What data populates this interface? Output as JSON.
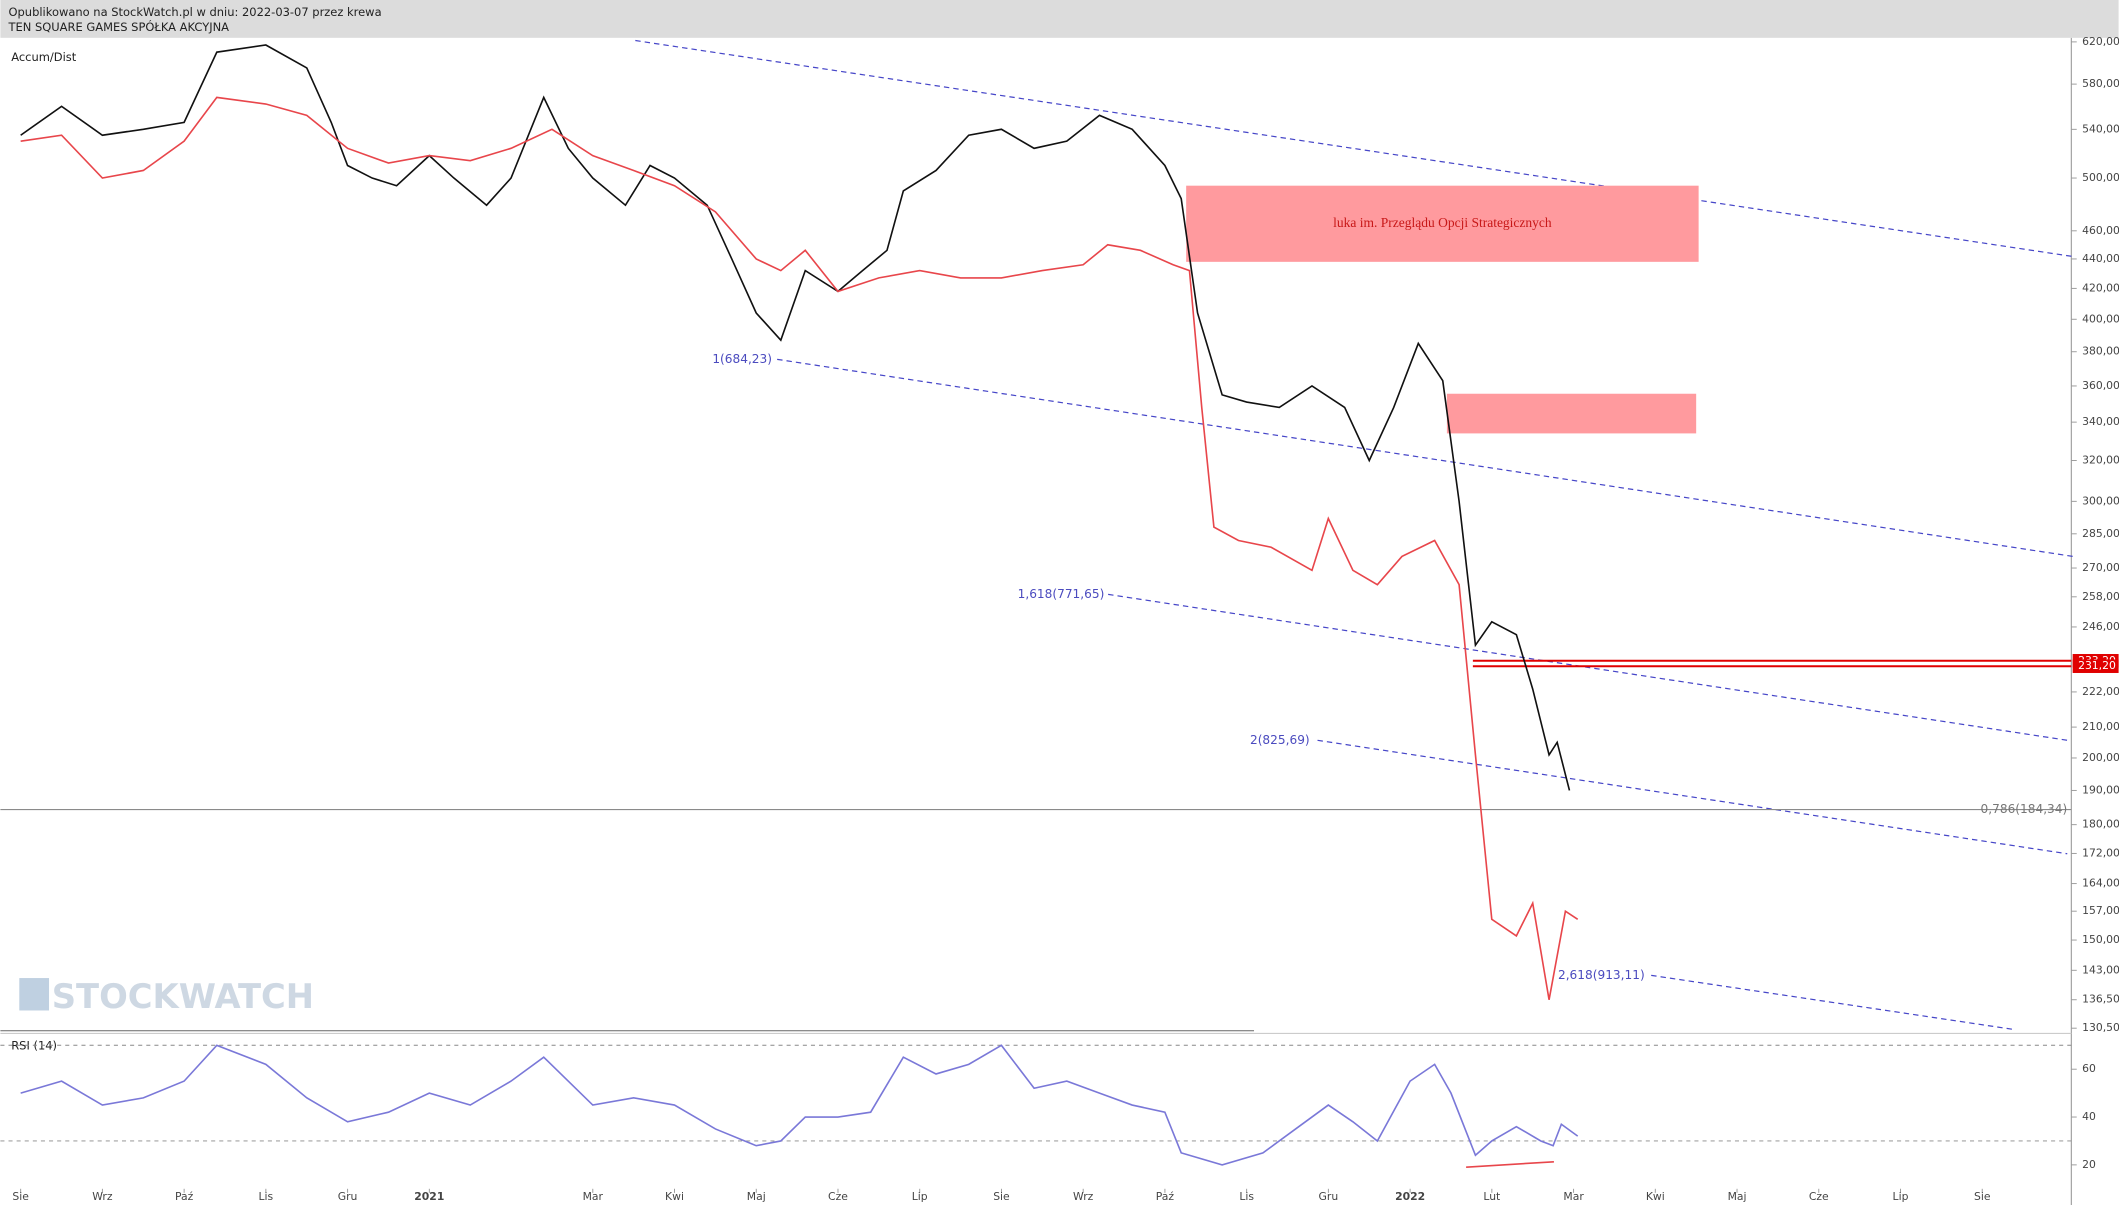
{
  "header": {
    "line1": "Opublikowano na StockWatch.pl w dniu: 2022-03-07 przez krewa",
    "line2": "TEN SQUARE GAMES SPÓŁKA AKCYJNA"
  },
  "watermark": "STOCKWATCH",
  "chart_data": [
    {
      "type": "line",
      "title": "Accum/Dist",
      "log_scale": true,
      "xlim": [
        -0.248,
        25.09
      ],
      "ylim": [
        129.7,
        624
      ],
      "yticks": [
        {
          "value": 620,
          "label": "620,00"
        },
        {
          "value": 580,
          "label": "580,00"
        },
        {
          "value": 540,
          "label": "540,00"
        },
        {
          "value": 500,
          "label": "500,00"
        },
        {
          "value": 460,
          "label": "460,00"
        },
        {
          "value": 440,
          "label": "440,00"
        },
        {
          "value": 420,
          "label": "420,00"
        },
        {
          "value": 400,
          "label": "400,00"
        },
        {
          "value": 380,
          "label": "380,00"
        },
        {
          "value": 360,
          "label": "360,00"
        },
        {
          "value": 340,
          "label": "340,00"
        },
        {
          "value": 320,
          "label": "320,00"
        },
        {
          "value": 300,
          "label": "300,00"
        },
        {
          "value": 285,
          "label": "285,00"
        },
        {
          "value": 270,
          "label": "270,00"
        },
        {
          "value": 258,
          "label": "258,00"
        },
        {
          "value": 246,
          "label": "246,00"
        },
        {
          "value": 222,
          "label": "222,00"
        },
        {
          "value": 210,
          "label": "210,00"
        },
        {
          "value": 200,
          "label": "200,00"
        },
        {
          "value": 190,
          "label": "190,00"
        },
        {
          "value": 180,
          "label": "180,00"
        },
        {
          "value": 172,
          "label": "172,00"
        },
        {
          "value": 164,
          "label": "164,00"
        },
        {
          "value": 157,
          "label": "157,00"
        },
        {
          "value": 150,
          "label": "150,00"
        },
        {
          "value": 143,
          "label": "143,00"
        },
        {
          "value": 136.5,
          "label": "136,50"
        },
        {
          "value": 130.5,
          "label": "130,50"
        }
      ],
      "series": [
        {
          "color": "#111111",
          "x": [
            0,
            0.5,
            1.0,
            1.5,
            2.0,
            2.4,
            3.0,
            3.5,
            3.8,
            4.0,
            4.3,
            4.6,
            5.0,
            5.3,
            5.7,
            6.0,
            6.4,
            6.7,
            7.0,
            7.4,
            7.7,
            8.0,
            8.4,
            8.7,
            9.0,
            9.3,
            9.6,
            10.0,
            10.3,
            10.6,
            10.8,
            11.2,
            11.6,
            12.0,
            12.4,
            12.8,
            13.2,
            13.6,
            14.0,
            14.2,
            14.4,
            14.7,
            15.0,
            15.4,
            15.8,
            16.2,
            16.5,
            16.8,
            17.1,
            17.4,
            17.6,
            17.8,
            18.0,
            18.3,
            18.5,
            18.7,
            18.8,
            18.95
          ],
          "values": [
            535,
            560,
            535,
            540,
            546,
            610,
            617,
            595,
            546,
            510,
            500,
            494,
            518,
            500,
            479,
            500,
            568,
            524,
            500,
            479,
            510,
            500,
            479,
            440,
            404,
            387,
            432,
            418,
            432,
            446,
            490,
            506,
            535,
            540,
            524,
            530,
            552,
            540,
            510,
            484,
            404,
            355,
            351,
            348,
            360,
            348,
            320,
            348,
            385,
            363,
            300,
            239,
            248,
            243,
            223,
            201,
            205,
            190
          ]
        },
        {
          "color": "#e8464b",
          "x": [
            0,
            0.5,
            1.0,
            1.5,
            2.0,
            2.4,
            3.0,
            3.5,
            4.0,
            4.5,
            5.0,
            5.5,
            6.0,
            6.5,
            7.0,
            7.5,
            8.0,
            8.5,
            9.0,
            9.3,
            9.6,
            10.0,
            10.5,
            11.0,
            11.5,
            12.0,
            12.5,
            13.0,
            13.3,
            13.7,
            14.1,
            14.3,
            14.45,
            14.6,
            14.9,
            15.3,
            15.8,
            16.0,
            16.3,
            16.6,
            16.9,
            17.3,
            17.6,
            17.8,
            18.0,
            18.3,
            18.5,
            18.7,
            18.9,
            19.05
          ],
          "values": [
            530,
            535,
            500,
            506,
            530,
            568,
            562,
            552,
            524,
            512,
            518,
            514,
            524,
            540,
            518,
            506,
            494,
            474,
            440,
            432,
            446,
            418,
            427,
            432,
            427,
            427,
            432,
            436,
            450,
            446,
            436,
            432,
            348,
            288,
            282,
            279,
            269,
            292,
            269,
            263,
            275,
            282,
            263,
            201,
            155,
            151,
            159,
            136.5,
            157,
            155
          ]
        }
      ],
      "zones": [
        {
          "x": [
            14.26,
            20.53
          ],
          "y": [
            438,
            494
          ],
          "color": "#ff9a9e",
          "label": "luka im. Przeglądu Opcji Strategicznych"
        },
        {
          "x": [
            17.45,
            20.5
          ],
          "y": [
            334,
            355.6
          ],
          "color": "#ff9a9e"
        }
      ],
      "hlines": [
        {
          "value": 233.2,
          "label": "233,20",
          "color": "#e00000"
        },
        {
          "value": 231.2,
          "label": "231,20",
          "color": "#e00000"
        },
        {
          "value": 184.34,
          "label": "0,786(184,34)",
          "color": "#8a8a8a"
        }
      ],
      "fib_labels": [
        "1(684,23)",
        "1,618(771,65)",
        "2(825,69)",
        "2,618(913,11)"
      ]
    },
    {
      "type": "line",
      "title": "RSI (14)",
      "xlim": [
        -0.248,
        25.09
      ],
      "ylim": [
        10,
        71
      ],
      "yticks": [
        20,
        40,
        60
      ],
      "levels": [
        70,
        30
      ],
      "xticks": [
        {
          "value": 0,
          "label": "Sie"
        },
        {
          "value": 1,
          "label": "Wrz"
        },
        {
          "value": 2,
          "label": "Paź"
        },
        {
          "value": 3,
          "label": "Lis"
        },
        {
          "value": 4,
          "label": "Gru"
        },
        {
          "value": 5,
          "label": "2021"
        },
        {
          "value": 7,
          "label": "Mar"
        },
        {
          "value": 8,
          "label": "Kwi"
        },
        {
          "value": 9,
          "label": "Maj"
        },
        {
          "value": 10,
          "label": "Cze"
        },
        {
          "value": 11,
          "label": "Lip"
        },
        {
          "value": 12,
          "label": "Sie"
        },
        {
          "value": 13,
          "label": "Wrz"
        },
        {
          "value": 14,
          "label": "Paź"
        },
        {
          "value": 15,
          "label": "Lis"
        },
        {
          "value": 16,
          "label": "Gru"
        },
        {
          "value": 17,
          "label": "2022"
        },
        {
          "value": 18,
          "label": "Lut"
        },
        {
          "value": 19,
          "label": "Mar"
        },
        {
          "value": 20,
          "label": "Kwi"
        },
        {
          "value": 21,
          "label": "Maj"
        },
        {
          "value": 22,
          "label": "Cze"
        },
        {
          "value": 23,
          "label": "Lip"
        },
        {
          "value": 24,
          "label": "Sie"
        }
      ],
      "series": [
        {
          "color": "#7a78d8",
          "x": [
            0,
            0.5,
            1.0,
            1.5,
            2.0,
            2.4,
            3.0,
            3.5,
            4.0,
            4.5,
            5.0,
            5.5,
            6.0,
            6.4,
            7.0,
            7.5,
            8.0,
            8.5,
            9.0,
            9.3,
            9.6,
            10.0,
            10.4,
            10.8,
            11.2,
            11.6,
            12.0,
            12.4,
            12.8,
            13.2,
            13.6,
            14.0,
            14.2,
            14.7,
            15.2,
            15.6,
            16.0,
            16.3,
            16.6,
            17.0,
            17.3,
            17.5,
            17.8,
            18.0,
            18.3,
            18.6,
            18.75,
            18.85,
            19.05
          ],
          "values": [
            50,
            55,
            45,
            48,
            55,
            70,
            62,
            48,
            38,
            42,
            50,
            45,
            55,
            65,
            45,
            48,
            45,
            35,
            28,
            30,
            40,
            40,
            42,
            65,
            58,
            62,
            70,
            52,
            55,
            50,
            45,
            42,
            25,
            20,
            25,
            35,
            45,
            38,
            30,
            55,
            62,
            50,
            24,
            30,
            36,
            30,
            28,
            37,
            32
          ]
        }
      ]
    }
  ]
}
